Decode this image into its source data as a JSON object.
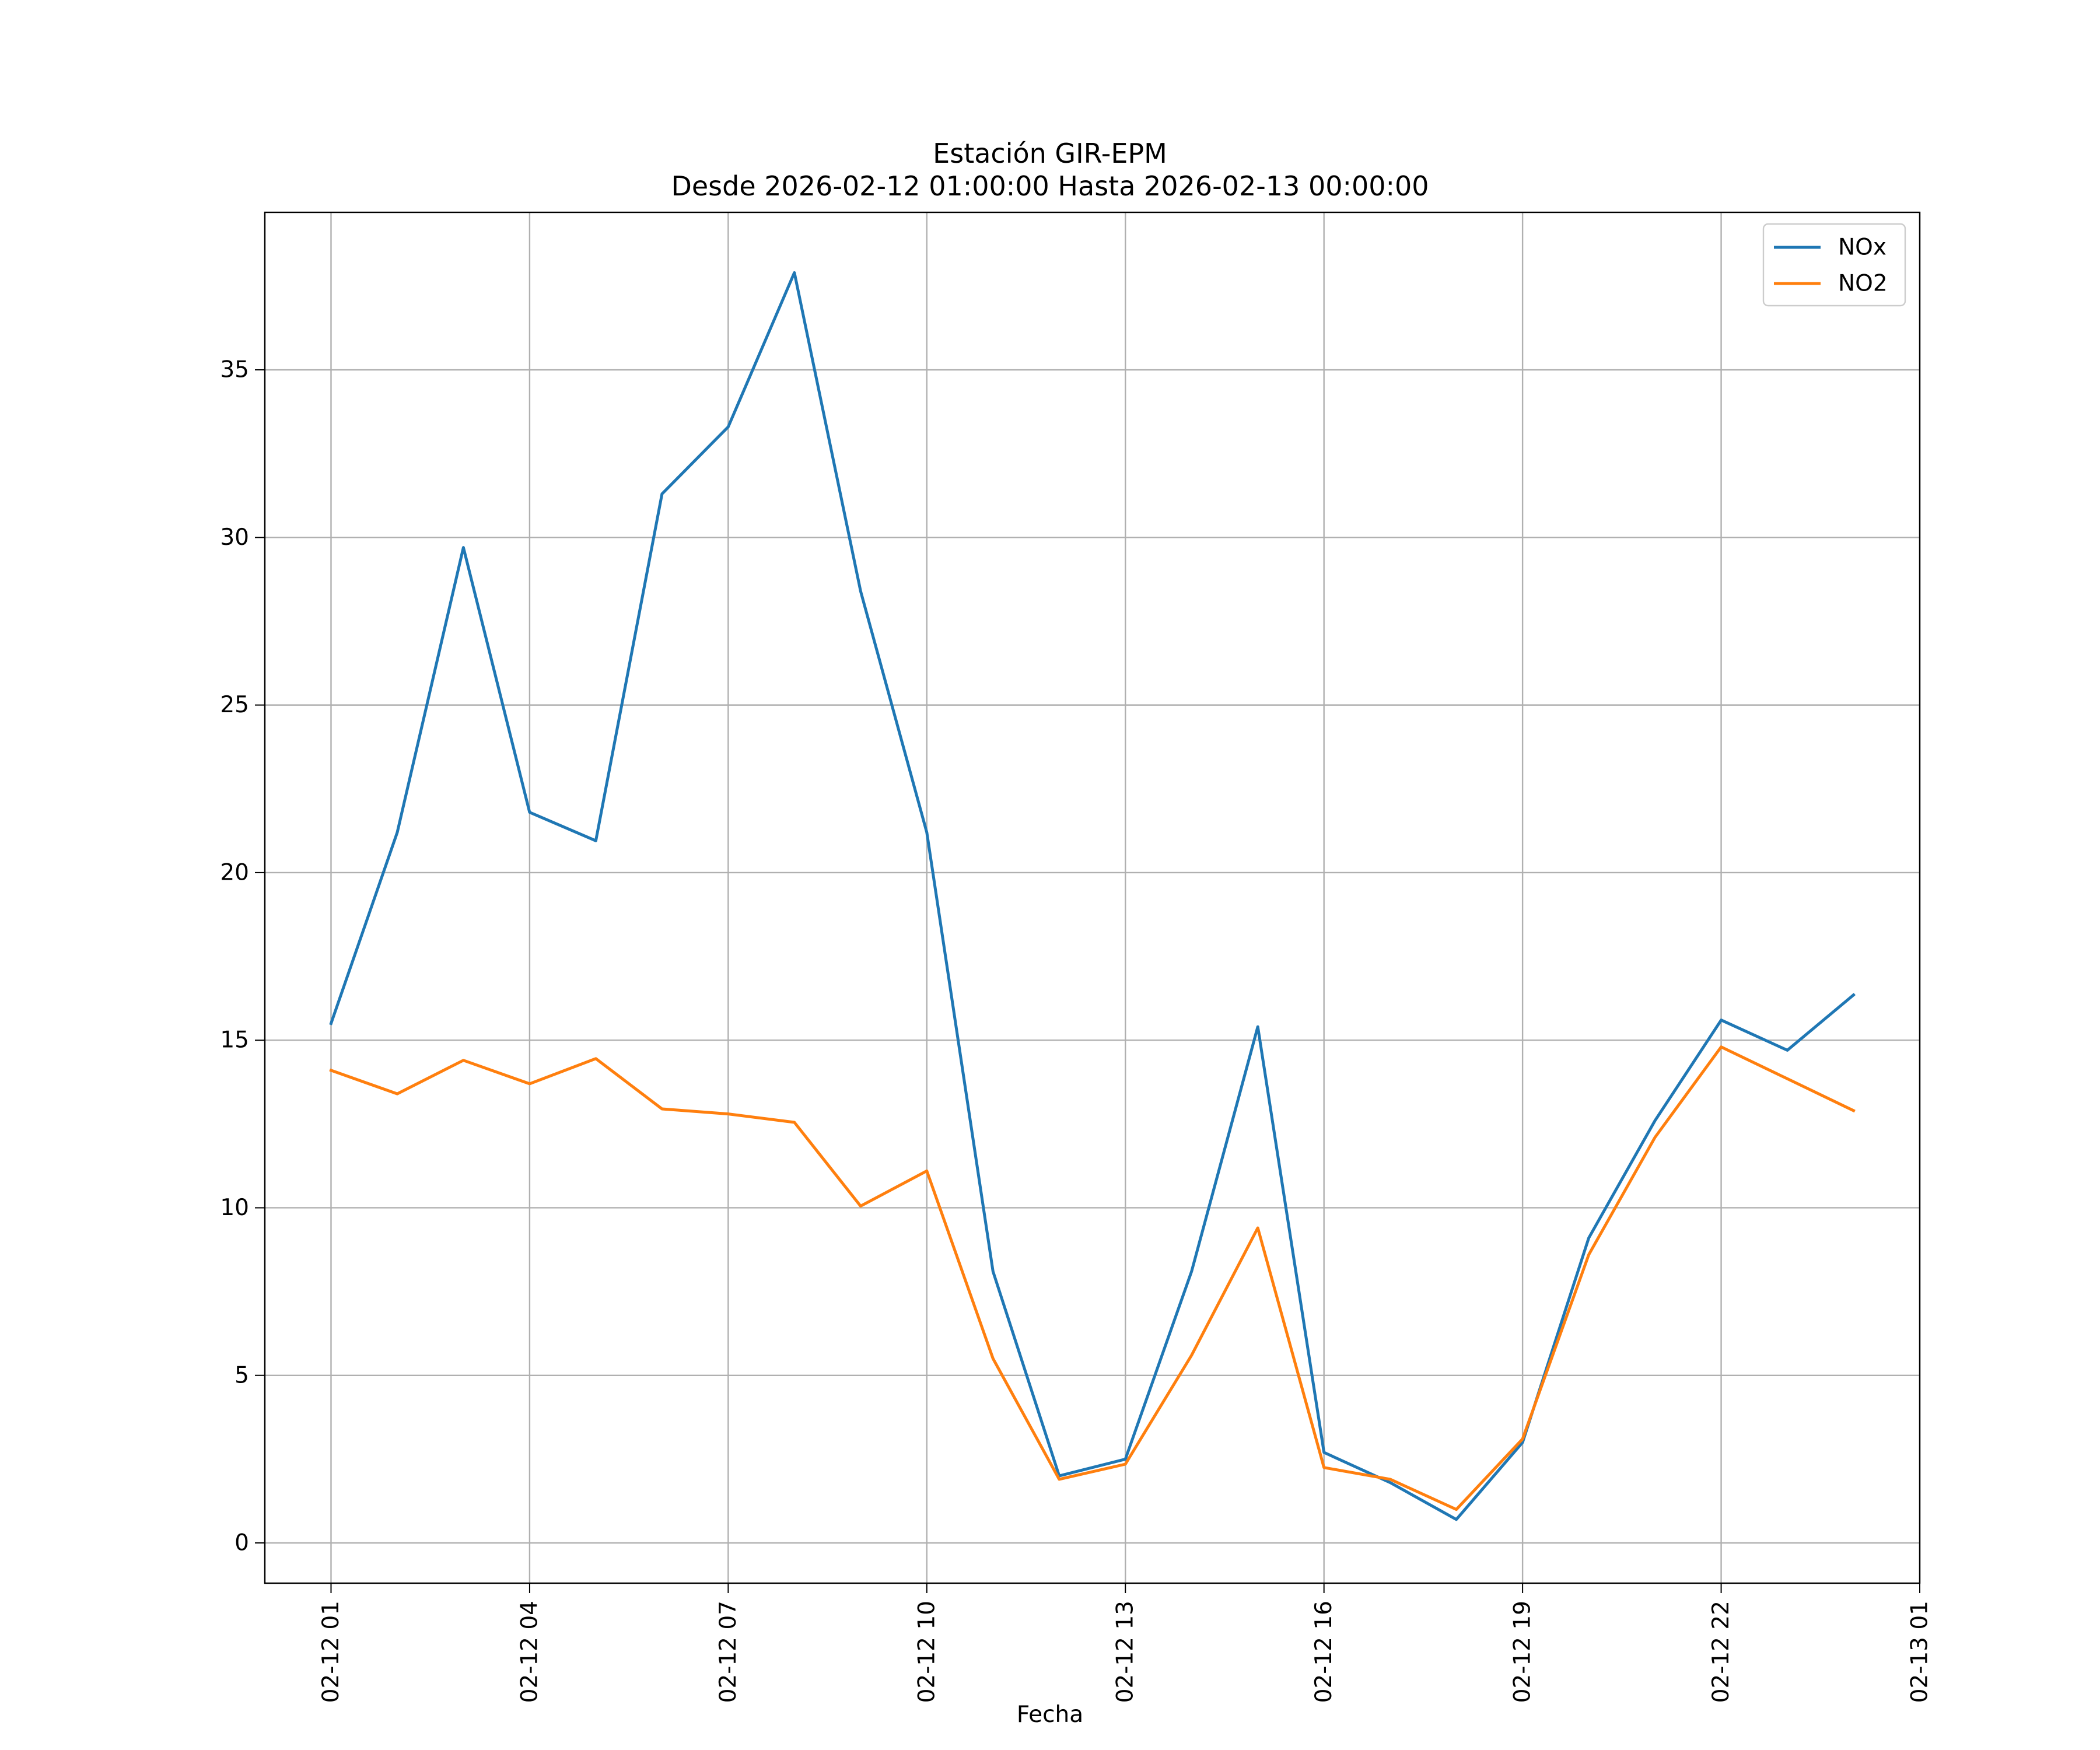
{
  "chart_data": {
    "type": "line",
    "title": "Estación GIR-EPM",
    "subtitle": "Desde 2026-02-12 01:00:00 Hasta 2026-02-13 00:00:00",
    "xlabel": "Fecha",
    "ylabel": "",
    "x": [
      "2026-02-12 01:00",
      "2026-02-12 02:00",
      "2026-02-12 03:00",
      "2026-02-12 04:00",
      "2026-02-12 05:00",
      "2026-02-12 06:00",
      "2026-02-12 07:00",
      "2026-02-12 08:00",
      "2026-02-12 09:00",
      "2026-02-12 10:00",
      "2026-02-12 11:00",
      "2026-02-12 12:00",
      "2026-02-12 13:00",
      "2026-02-12 14:00",
      "2026-02-12 15:00",
      "2026-02-12 16:00",
      "2026-02-12 17:00",
      "2026-02-12 18:00",
      "2026-02-12 19:00",
      "2026-02-12 20:00",
      "2026-02-12 21:00",
      "2026-02-12 22:00",
      "2026-02-12 23:00",
      "2026-02-13 00:00"
    ],
    "series": [
      {
        "name": "NOx",
        "color": "#1f77b4",
        "values": [
          15.5,
          21.2,
          29.7,
          21.8,
          20.95,
          31.3,
          33.3,
          37.9,
          28.4,
          21.2,
          8.1,
          2.0,
          2.5,
          8.1,
          15.4,
          2.7,
          1.8,
          0.7,
          3.0,
          9.1,
          12.6,
          15.6,
          14.7,
          16.35
        ]
      },
      {
        "name": "NO2",
        "color": "#ff7f0e",
        "values": [
          14.1,
          13.4,
          14.4,
          13.7,
          14.45,
          12.95,
          12.8,
          12.55,
          10.05,
          11.1,
          5.5,
          1.9,
          2.35,
          5.6,
          9.4,
          2.25,
          1.9,
          1.0,
          3.1,
          8.6,
          12.1,
          14.8,
          13.85,
          12.9
        ]
      }
    ],
    "x_ticks": [
      "02-12 01",
      "02-12 04",
      "02-12 07",
      "02-12 10",
      "02-12 13",
      "02-12 16",
      "02-12 19",
      "02-12 22",
      "02-13 01"
    ],
    "y_ticks": [
      "0",
      "5",
      "10",
      "15",
      "20",
      "25",
      "30",
      "35"
    ],
    "xlim": [
      "2026-02-12 00:00",
      "2026-02-13 01:00"
    ],
    "ylim": [
      -1.2,
      39.7
    ],
    "grid": true,
    "legend_position": "upper right"
  }
}
